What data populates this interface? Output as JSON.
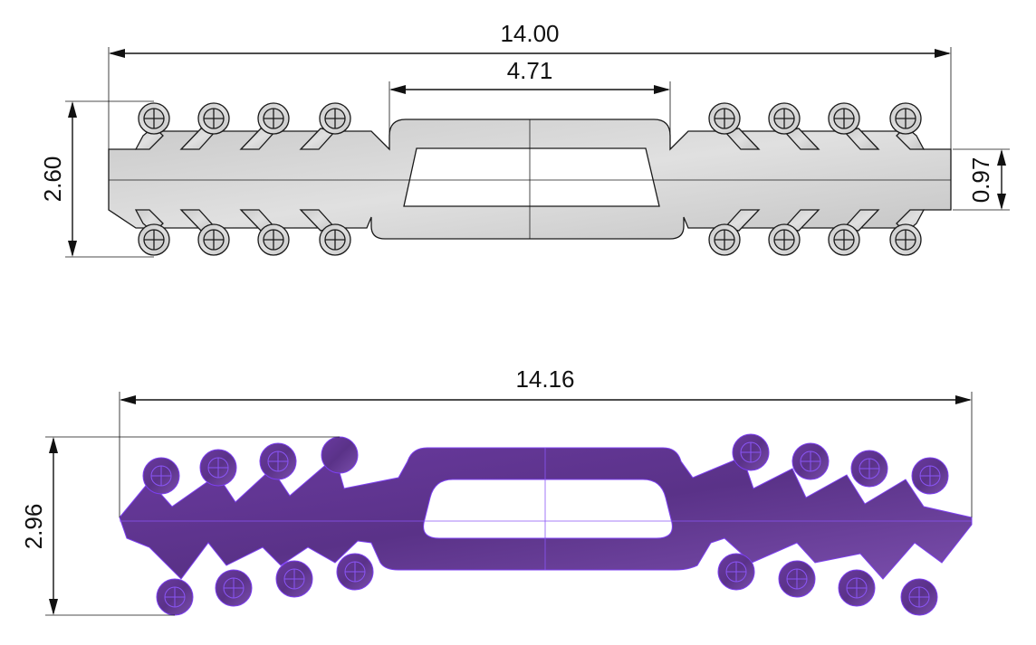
{
  "drawing": {
    "top_view": {
      "dimensions": {
        "overall_length": "14.00",
        "slot_length": "4.71",
        "overall_height": "2.60",
        "band_width": "0.97"
      },
      "colors": {
        "fill": "#d2d2d2",
        "edge": "#1a1a1a"
      }
    },
    "bottom_view": {
      "dimensions": {
        "overall_length": "14.16",
        "overall_height": "2.96"
      },
      "colors": {
        "fill": "#5f3590",
        "fill_light": "#7b4fb0",
        "edge": "#7c3ff0"
      }
    }
  }
}
